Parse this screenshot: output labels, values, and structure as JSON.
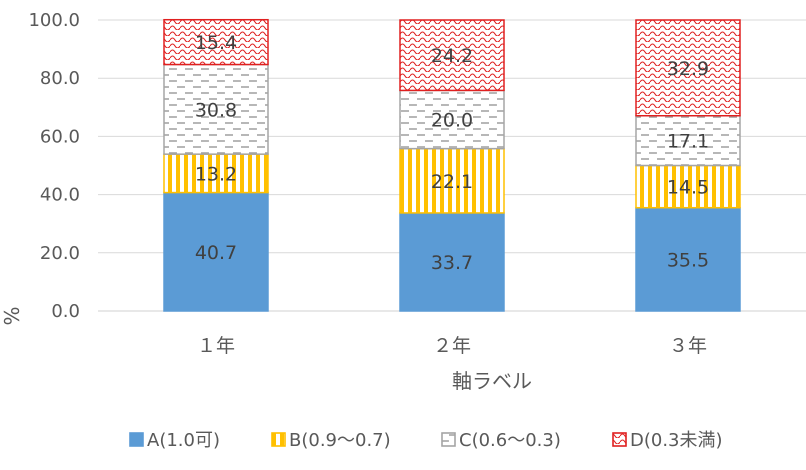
{
  "chart_data": {
    "type": "bar",
    "stacked": true,
    "title": "",
    "xlabel": "軸ラベル",
    "ylabel": "%",
    "ylim": [
      0,
      100
    ],
    "yticks": [
      "0.0",
      "20.0",
      "40.0",
      "60.0",
      "80.0",
      "100.0"
    ],
    "categories": [
      "１年",
      "２年",
      "３年"
    ],
    "grid": true,
    "legend_position": "bottom",
    "series": [
      {
        "name": "A(1.0可)",
        "values": [
          40.7,
          33.7,
          35.5
        ],
        "color": "#5b9bd5",
        "pattern": "solid"
      },
      {
        "name": "B(0.9〜0.7)",
        "values": [
          13.2,
          22.1,
          14.5
        ],
        "color": "#ffc000",
        "pattern": "vertical-stripes"
      },
      {
        "name": "C(0.6〜0.3)",
        "values": [
          30.8,
          20.0,
          17.1
        ],
        "color": "#a5a5a5",
        "pattern": "dashed-horizontal"
      },
      {
        "name": "D(0.3未満)",
        "values": [
          15.4,
          24.2,
          32.9
        ],
        "color": "#e02020",
        "pattern": "wave"
      }
    ]
  }
}
